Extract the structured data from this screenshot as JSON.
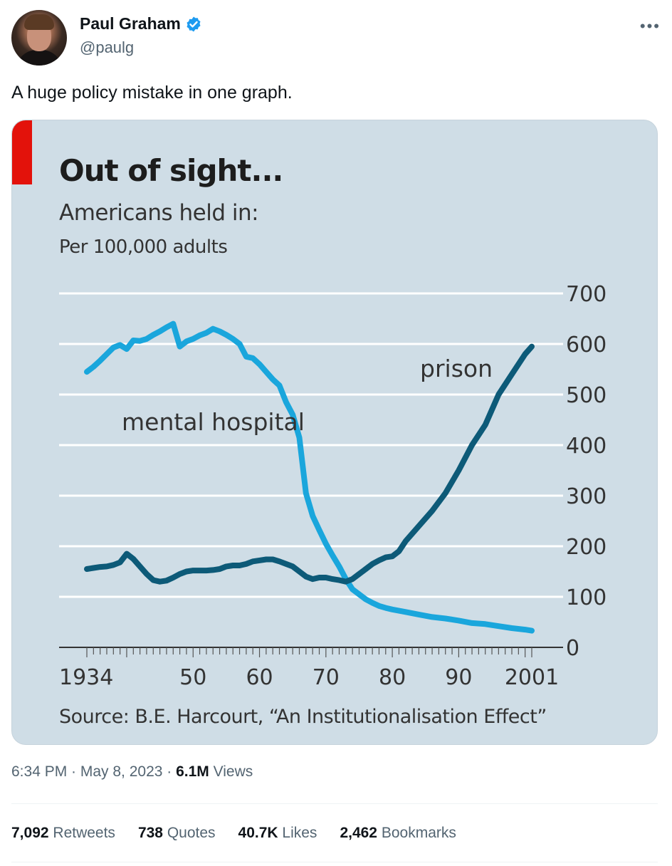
{
  "author": {
    "name": "Paul Graham",
    "handle": "@paulg",
    "verified_color": "#1d9bf0"
  },
  "tweet": {
    "text": "A huge policy mistake in one graph."
  },
  "chart_data": {
    "type": "line",
    "title": "Out of sight...",
    "subtitle": "Americans held in:",
    "unit": "Per 100,000 adults",
    "source": "Source: B.E. Harcourt, “An Institutionalisation Effect”",
    "ylim": [
      0,
      700
    ],
    "yticks": [
      0,
      100,
      200,
      300,
      400,
      500,
      600,
      700
    ],
    "xlim": [
      1934,
      2001
    ],
    "xtick_labels": [
      {
        "x": 1934,
        "label": "1934"
      },
      {
        "x": 1950,
        "label": "50"
      },
      {
        "x": 1960,
        "label": "60"
      },
      {
        "x": 1970,
        "label": "70"
      },
      {
        "x": 1980,
        "label": "80"
      },
      {
        "x": 1990,
        "label": "90"
      },
      {
        "x": 2001,
        "label": "2001"
      }
    ],
    "grid": true,
    "series": [
      {
        "name": "mental hospital",
        "color": "#1aa6dc",
        "x": [
          1934,
          1935,
          1936,
          1937,
          1938,
          1939,
          1940,
          1941,
          1942,
          1943,
          1944,
          1945,
          1946,
          1947,
          1948,
          1949,
          1950,
          1951,
          1952,
          1953,
          1954,
          1955,
          1956,
          1957,
          1958,
          1959,
          1960,
          1961,
          1962,
          1963,
          1964,
          1965,
          1966,
          1967,
          1968,
          1969,
          1970,
          1971,
          1972,
          1973,
          1974,
          1975,
          1976,
          1977,
          1978,
          1979,
          1980,
          1982,
          1984,
          1986,
          1988,
          1990,
          1992,
          1994,
          1996,
          1998,
          2000,
          2001
        ],
        "values": [
          545,
          555,
          567,
          580,
          593,
          598,
          590,
          607,
          606,
          610,
          618,
          625,
          633,
          640,
          595,
          605,
          610,
          617,
          622,
          630,
          625,
          618,
          610,
          600,
          575,
          572,
          560,
          545,
          530,
          518,
          485,
          460,
          415,
          305,
          260,
          232,
          205,
          182,
          160,
          135,
          115,
          105,
          95,
          88,
          82,
          78,
          75,
          70,
          65,
          60,
          57,
          53,
          48,
          46,
          42,
          38,
          35,
          33
        ]
      },
      {
        "name": "prison",
        "color": "#0d5a78",
        "x": [
          1934,
          1935,
          1936,
          1937,
          1938,
          1939,
          1940,
          1941,
          1942,
          1943,
          1944,
          1945,
          1946,
          1947,
          1948,
          1949,
          1950,
          1951,
          1952,
          1953,
          1954,
          1955,
          1956,
          1957,
          1958,
          1959,
          1960,
          1961,
          1962,
          1963,
          1964,
          1965,
          1966,
          1967,
          1968,
          1969,
          1970,
          1971,
          1972,
          1973,
          1974,
          1975,
          1976,
          1977,
          1978,
          1979,
          1980,
          1981,
          1982,
          1984,
          1986,
          1988,
          1990,
          1992,
          1994,
          1996,
          1998,
          2000,
          2001
        ],
        "values": [
          155,
          157,
          159,
          160,
          163,
          168,
          185,
          175,
          160,
          145,
          133,
          130,
          132,
          138,
          145,
          150,
          152,
          152,
          152,
          153,
          155,
          160,
          162,
          162,
          165,
          170,
          172,
          174,
          174,
          170,
          165,
          160,
          150,
          140,
          135,
          138,
          138,
          135,
          133,
          130,
          135,
          145,
          155,
          165,
          172,
          178,
          180,
          190,
          210,
          240,
          270,
          305,
          350,
          400,
          440,
          500,
          540,
          580,
          595
        ]
      }
    ],
    "annotations": [
      {
        "text": "mental hospital",
        "series": "mental hospital"
      },
      {
        "text": "prison",
        "series": "prison"
      }
    ]
  },
  "timestamp": {
    "time_date": "6:34 PM · May 8, 2023 · ",
    "views_count": "6.1M",
    "views_label": " Views"
  },
  "stats": [
    {
      "count": "7,092",
      "label": " Retweets"
    },
    {
      "count": "738",
      "label": " Quotes"
    },
    {
      "count": "40.7K",
      "label": " Likes"
    },
    {
      "count": "2,462",
      "label": " Bookmarks"
    }
  ]
}
